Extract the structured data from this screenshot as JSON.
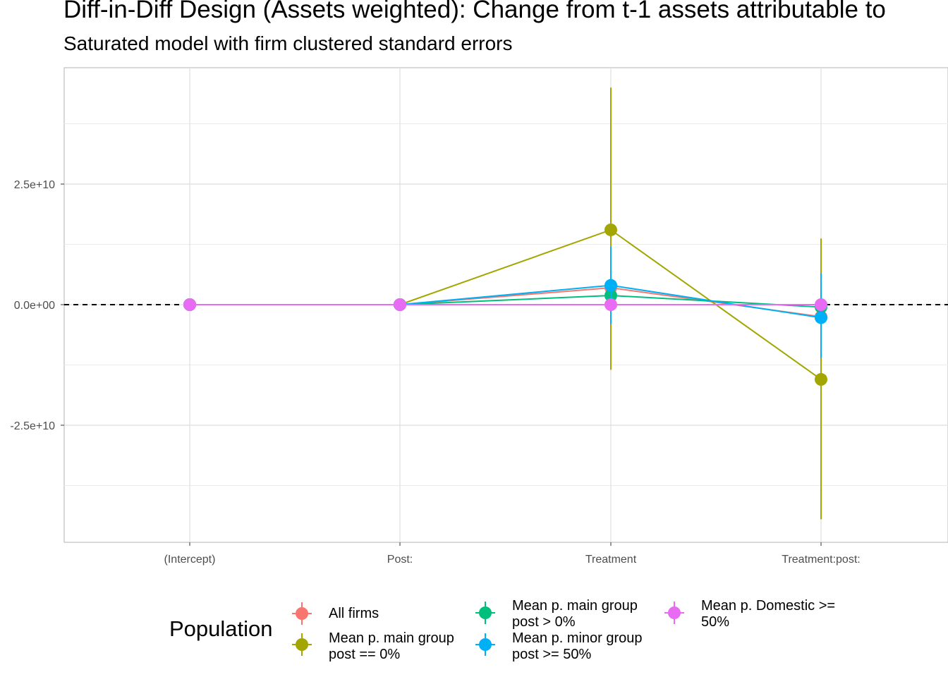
{
  "chart_data": {
    "type": "scatter",
    "title": "Diff-in-Diff Design (Assets weighted): Change from t-1 assets attributable to",
    "subtitle": "Saturated model with firm clustered standard errors",
    "xlabel": "",
    "ylabel": "",
    "categories": [
      "(Intercept)",
      "Post:",
      "Treatment",
      "Treatment:post:"
    ],
    "ylim": [
      -49000000000.0,
      49000000000.0
    ],
    "yticks": [
      -25000000000.0,
      0,
      25000000000.0
    ],
    "ytick_labels": [
      "-2.5e+10",
      "0.0e+00",
      "2.5e+10"
    ],
    "reference_line": {
      "y": 0,
      "style": "dashed"
    },
    "grid": true,
    "legend": {
      "title": "Population",
      "position": "bottom"
    },
    "series": [
      {
        "name": "All firms",
        "color": "#F8766D",
        "values": [
          0,
          0,
          3500000000.0,
          -2500000000.0
        ],
        "lower": [
          0,
          0,
          3500000000.0,
          -2500000000.0
        ],
        "upper": [
          0,
          0,
          3500000000.0,
          -2500000000.0
        ]
      },
      {
        "name": "Mean p. main group post == 0%",
        "color": "#A3A500",
        "values": [
          0,
          0,
          15500000000.0,
          -15500000000.0
        ],
        "lower": [
          0,
          0,
          -13500000000.0,
          -44500000000.0
        ],
        "upper": [
          0,
          0,
          45000000000.0,
          13700000000.0
        ]
      },
      {
        "name": "Mean p. main group post > 0%",
        "color": "#00BF7D",
        "values": [
          0,
          0,
          1900000000.0,
          -500000000.0
        ],
        "lower": [
          0,
          0,
          1900000000.0,
          -500000000.0
        ],
        "upper": [
          0,
          0,
          1900000000.0,
          -500000000.0
        ]
      },
      {
        "name": "Mean p. minor group post >= 50%",
        "color": "#00B0F6",
        "values": [
          0,
          0,
          4000000000.0,
          -2700000000.0
        ],
        "lower": [
          0,
          0,
          -4000000000.0,
          -11000000000.0
        ],
        "upper": [
          0,
          0,
          12000000000.0,
          6500000000.0
        ]
      },
      {
        "name": "Mean p. Domestic >= 50%",
        "color": "#E76BF3",
        "values": [
          0,
          0,
          0,
          0
        ],
        "lower": [
          0,
          0,
          0,
          0
        ],
        "upper": [
          0,
          0,
          0,
          0
        ]
      }
    ]
  },
  "legend_labels": [
    "All firms",
    "Mean p. main group\npost == 0%",
    "Mean p. main group\npost > 0%",
    "Mean p. minor group\npost >= 50%",
    "Mean p. Domestic >=\n50%"
  ]
}
